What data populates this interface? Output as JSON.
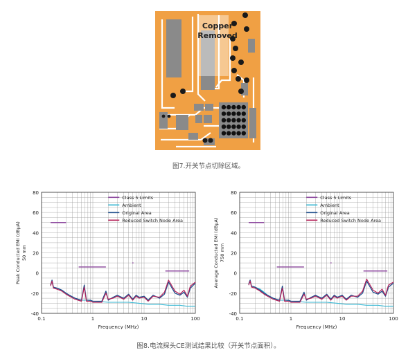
{
  "pcb_figure": {
    "overlay_label_line1": "Copper",
    "overlay_label_line2": "Removed",
    "colors": {
      "copper": "#f0a044",
      "pad": "#8a8a8a",
      "trace": "#ffffff",
      "via": "#1a1a1a"
    }
  },
  "captions": {
    "fig7": "图7.开关节点切除区域。",
    "fig8": "图8.电流探头CE测试结果比较（开关节点面积）。"
  },
  "chart_data": [
    {
      "type": "line",
      "xscale": "log",
      "xlim": [
        0.1,
        100
      ],
      "ylim": [
        -40,
        80
      ],
      "xticks": [
        0.1,
        1,
        10,
        100
      ],
      "xtick_labels": [
        "0.1",
        "1",
        "10",
        "100"
      ],
      "yticks": [
        -40,
        -20,
        0,
        20,
        40,
        60,
        80
      ],
      "ytick_labels": [
        "-40",
        "-20",
        "0",
        "20",
        "40",
        "60",
        "80"
      ],
      "xlabel": "Frequency (MHz)",
      "ylabel_line1": "Peak Conducted EMI (dBµA)",
      "ylabel_line2": "50 mm",
      "grid": true,
      "legend_placement": "top-right",
      "legend": [
        "Class 5 Limits",
        "Ambient",
        "Original Area",
        "Reduced Switch Node Area"
      ],
      "colors": {
        "limits": "#8e4a9f",
        "ambient": "#35b6d2",
        "original": "#1f4e8c",
        "reduced": "#b5235a"
      },
      "limits": [
        {
          "x": [
            0.15,
            0.3
          ],
          "y": 50
        },
        {
          "x": [
            0.53,
            1.8
          ],
          "y": 6
        },
        {
          "x": [
            5.9,
            6.2
          ],
          "y": 10
        },
        {
          "x": [
            26,
            76
          ],
          "y": 2
        }
      ],
      "series": [
        {
          "name": "Ambient",
          "x": [
            0.15,
            0.16,
            0.17,
            0.2,
            0.25,
            0.3,
            0.35,
            0.45,
            0.6,
            0.8,
            1.0,
            1.5,
            2,
            3,
            5,
            8,
            12,
            20,
            30,
            50,
            70,
            100
          ],
          "y": [
            -12,
            -9,
            -14,
            -15,
            -17,
            -20,
            -22,
            -25,
            -27,
            -27,
            -28,
            -28.5,
            -29,
            -29,
            -29,
            -30,
            -31,
            -31,
            -32,
            -32,
            -33,
            -33
          ]
        },
        {
          "name": "Original Area",
          "x": [
            0.15,
            0.16,
            0.17,
            0.2,
            0.25,
            0.3,
            0.35,
            0.45,
            0.6,
            0.68,
            0.75,
            0.9,
            1.0,
            1.5,
            1.8,
            2,
            2.5,
            3,
            4,
            5,
            6,
            7,
            8,
            10,
            12,
            15,
            20,
            25,
            30,
            40,
            50,
            60,
            70,
            80,
            100
          ],
          "y": [
            -12,
            -7,
            -14,
            -15,
            -17,
            -20,
            -22,
            -25,
            -27,
            -12,
            -27,
            -27,
            -28,
            -28,
            -18,
            -27,
            -24,
            -22,
            -25,
            -21,
            -26,
            -22,
            -24,
            -23,
            -27,
            -22,
            -25,
            -21,
            -9,
            -20,
            -22,
            -19,
            -24,
            -15,
            -10
          ]
        },
        {
          "name": "Reduced Switch Node Area",
          "x": [
            0.15,
            0.16,
            0.17,
            0.2,
            0.25,
            0.3,
            0.35,
            0.45,
            0.6,
            0.68,
            0.75,
            0.9,
            1.0,
            1.5,
            1.8,
            2,
            2.5,
            3,
            4,
            5,
            6,
            7,
            8,
            10,
            12,
            15,
            20,
            25,
            30,
            40,
            50,
            60,
            70,
            80,
            100
          ],
          "y": [
            -13,
            -8,
            -15,
            -16,
            -18,
            -21,
            -23,
            -26,
            -28,
            -14,
            -28,
            -28,
            -29,
            -29,
            -20,
            -26,
            -25,
            -23,
            -26,
            -22,
            -27,
            -23,
            -25,
            -24,
            -28,
            -23,
            -24,
            -19,
            -7,
            -18,
            -21,
            -17,
            -23,
            -13,
            -9
          ]
        }
      ]
    },
    {
      "type": "line",
      "xscale": "log",
      "xlim": [
        0.1,
        100
      ],
      "ylim": [
        -40,
        80
      ],
      "xticks": [
        0.1,
        1,
        10,
        100
      ],
      "xtick_labels": [
        "0.1",
        "1",
        "10",
        "100"
      ],
      "yticks": [
        -40,
        -20,
        0,
        20,
        40,
        60,
        80
      ],
      "ytick_labels": [
        "-40",
        "-20",
        "0",
        "20",
        "40",
        "60",
        "80"
      ],
      "xlabel": "Frequency (MHz)",
      "ylabel_line1": "Average Conducted EMI (dBµA)",
      "ylabel_line2": "750 mm",
      "grid": true,
      "legend_placement": "top-right",
      "legend": [
        "Class 5 Limits",
        "Ambient",
        "Original Area",
        "Reduced Switch Node Area"
      ],
      "colors": {
        "limits": "#8e4a9f",
        "ambient": "#35b6d2",
        "original": "#1f4e8c",
        "reduced": "#b5235a"
      },
      "limits": [
        {
          "x": [
            0.15,
            0.3
          ],
          "y": 50
        },
        {
          "x": [
            0.53,
            1.8
          ],
          "y": 6
        },
        {
          "x": [
            5.9,
            6.2
          ],
          "y": 10
        },
        {
          "x": [
            26,
            76
          ],
          "y": 2
        }
      ],
      "series": [
        {
          "name": "Ambient",
          "x": [
            0.15,
            0.16,
            0.17,
            0.2,
            0.25,
            0.3,
            0.35,
            0.45,
            0.6,
            0.8,
            1.0,
            1.5,
            2,
            3,
            5,
            8,
            12,
            20,
            30,
            50,
            70,
            100
          ],
          "y": [
            -12,
            -8,
            -13,
            -14,
            -16,
            -19,
            -22,
            -25,
            -27,
            -27,
            -28,
            -28.5,
            -29,
            -29,
            -29,
            -30,
            -31,
            -31,
            -32,
            -32,
            -33,
            -33
          ]
        },
        {
          "name": "Original Area",
          "x": [
            0.15,
            0.16,
            0.17,
            0.2,
            0.25,
            0.3,
            0.35,
            0.45,
            0.6,
            0.68,
            0.75,
            0.9,
            1.0,
            1.5,
            1.8,
            2,
            2.5,
            3,
            4,
            5,
            6,
            7,
            8,
            10,
            12,
            15,
            20,
            25,
            30,
            40,
            50,
            60,
            70,
            80,
            100
          ],
          "y": [
            -11,
            -7,
            -13,
            -14,
            -17,
            -20,
            -22,
            -25,
            -27,
            -13,
            -27,
            -27,
            -28,
            -28,
            -19,
            -27,
            -24,
            -22,
            -25,
            -21,
            -26,
            -22,
            -24,
            -22,
            -26,
            -22,
            -24,
            -20,
            -8,
            -19,
            -21,
            -18,
            -23,
            -14,
            -10
          ]
        },
        {
          "name": "Reduced Switch Node Area",
          "x": [
            0.15,
            0.16,
            0.17,
            0.2,
            0.25,
            0.3,
            0.35,
            0.45,
            0.6,
            0.68,
            0.75,
            0.9,
            1.0,
            1.5,
            1.8,
            2,
            2.5,
            3,
            4,
            5,
            6,
            7,
            8,
            10,
            12,
            15,
            20,
            25,
            30,
            40,
            50,
            60,
            70,
            80,
            100
          ],
          "y": [
            -12,
            -8,
            -14,
            -15,
            -18,
            -21,
            -23,
            -26,
            -28,
            -15,
            -28,
            -28,
            -29,
            -29,
            -21,
            -26,
            -25,
            -23,
            -26,
            -22,
            -27,
            -23,
            -25,
            -23,
            -27,
            -23,
            -23,
            -18,
            -6,
            -17,
            -20,
            -16,
            -22,
            -12,
            -9
          ]
        }
      ]
    }
  ]
}
